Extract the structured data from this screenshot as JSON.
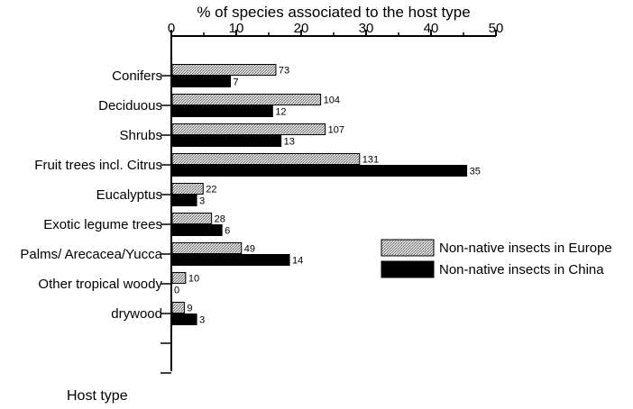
{
  "chart_data": {
    "type": "bar",
    "orientation": "horizontal",
    "title": "",
    "xlabel": "% of species associated to the host type",
    "ylabel": "Host type",
    "xlim": [
      0,
      50
    ],
    "xticks": [
      0,
      10,
      20,
      30,
      40,
      50
    ],
    "categories": [
      "Conifers",
      "Deciduous",
      "Shrubs",
      "Fruit trees incl. Citrus",
      "Eucalyptus",
      "Exotic legume trees",
      "Palms/ Arecacea/Yucca",
      "Other tropical woody",
      "drywood"
    ],
    "series": [
      {
        "name": "Non-native insects in Europe",
        "pattern": "hatched-gray",
        "values": [
          16.1,
          23,
          23.7,
          29,
          4.9,
          6.2,
          10.8,
          2.2,
          2
        ],
        "labels": [
          "73",
          "104",
          "107",
          "131",
          "22",
          "28",
          "49",
          "10",
          "9"
        ]
      },
      {
        "name": "Non-native insects in China",
        "color": "#000000",
        "values": [
          9.1,
          15.6,
          16.9,
          45.5,
          3.9,
          7.8,
          18.2,
          0,
          3.9
        ],
        "labels": [
          "7",
          "12",
          "13",
          "35",
          "3",
          "6",
          "14",
          "0",
          "3"
        ]
      }
    ],
    "legend_position": "right",
    "grid": false
  }
}
